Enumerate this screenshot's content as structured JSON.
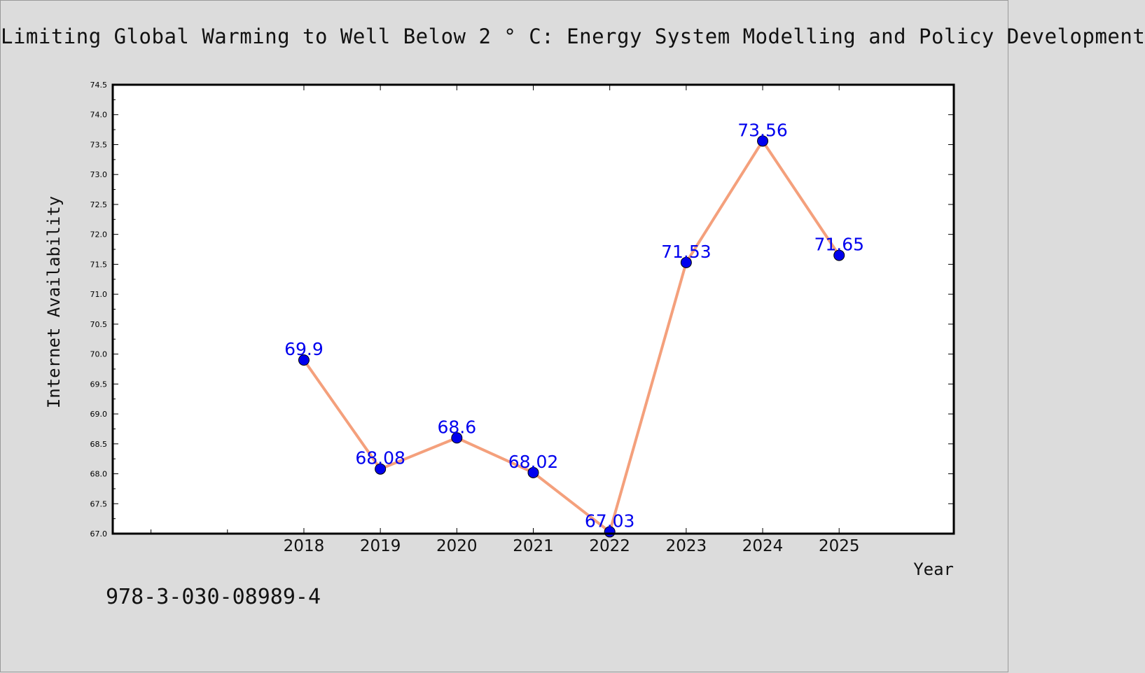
{
  "chart_data": {
    "type": "line",
    "title": "Limiting Global Warming to Well Below 2 ° C: Energy System Modelling and Policy Development",
    "xlabel": "Year",
    "ylabel": "Internet Availability",
    "x": [
      2018,
      2019,
      2020,
      2021,
      2022,
      2023,
      2024,
      2025
    ],
    "xlim": [
      2015.5,
      2026.5
    ],
    "ylim": [
      67.0,
      74.5
    ],
    "yticks": [
      "67.0",
      "67.5",
      "68.0",
      "68.5",
      "69.0",
      "69.5",
      "70.0",
      "70.5",
      "71.0",
      "71.5",
      "72.0",
      "72.5",
      "73.0",
      "73.5",
      "74.0",
      "74.5"
    ],
    "series": [
      {
        "values": [
          69.9,
          68.08,
          68.6,
          68.02,
          67.03,
          71.53,
          73.56,
          71.65
        ],
        "labels": [
          "69.9",
          "68.08",
          "68.6",
          "68.02",
          "67.03",
          "71.53",
          "73.56",
          "71.65"
        ],
        "line_color": "#f4a07c",
        "marker_color": "#0000ee",
        "label_color": "#0000ee"
      }
    ],
    "grid": false,
    "legend": "none"
  },
  "footnote": "978-3-030-08989-4"
}
